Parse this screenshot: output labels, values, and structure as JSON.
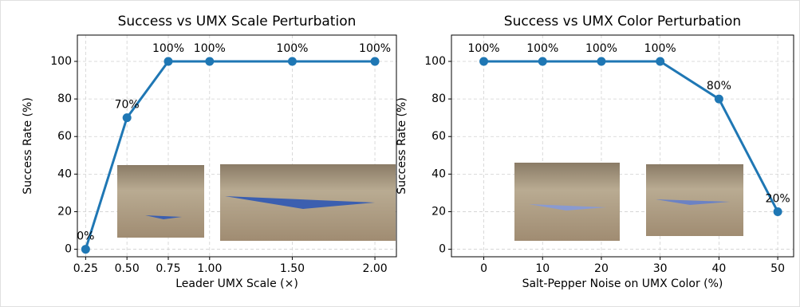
{
  "chart_data": [
    {
      "type": "line",
      "title": "Success vs UMX Scale Perturbation",
      "x_label": "Leader UMX Scale (×)",
      "y_label": "Success Rate (%)",
      "x": [
        0.25,
        0.5,
        0.75,
        1.0,
        1.5,
        2.0
      ],
      "series": [
        {
          "color": "#1f77b4",
          "values": [
            0,
            70,
            100,
            100,
            100,
            100
          ],
          "value_labels": [
            "0%",
            "70%",
            "100%",
            "100%",
            "100%",
            "100%"
          ]
        }
      ],
      "xlim": [
        0.2,
        2.13
      ],
      "ylim": [
        -4,
        114
      ],
      "xticks": [
        0.25,
        {
          "value": 0.5,
          "label": "0.50"
        },
        0.75,
        {
          "value": 1.0,
          "label": "1.00"
        },
        {
          "value": 1.5,
          "label": "1.50"
        },
        {
          "value": 2.0,
          "label": "2.00"
        }
      ],
      "yticks": [
        0,
        20,
        40,
        60,
        80,
        100
      ],
      "grid": true
    },
    {
      "type": "line",
      "title": "Success vs UMX Color Perturbation",
      "x_label": "Salt-Pepper Noise on UMX Color (%)",
      "y_label": "Success Rate (%)",
      "x": [
        0,
        10,
        20,
        30,
        40,
        50
      ],
      "series": [
        {
          "color": "#1f77b4",
          "values": [
            100,
            100,
            100,
            100,
            80,
            20
          ],
          "value_labels": [
            "100%",
            "100%",
            "100%",
            "100%",
            "80%",
            "20%"
          ]
        }
      ],
      "xlim": [
        -5.5,
        52.7
      ],
      "ylim": [
        -4,
        114
      ],
      "xticks": [
        0,
        10,
        20,
        30,
        40,
        50
      ],
      "yticks": [
        0,
        20,
        40,
        60,
        80,
        100
      ],
      "grid": true
    }
  ]
}
